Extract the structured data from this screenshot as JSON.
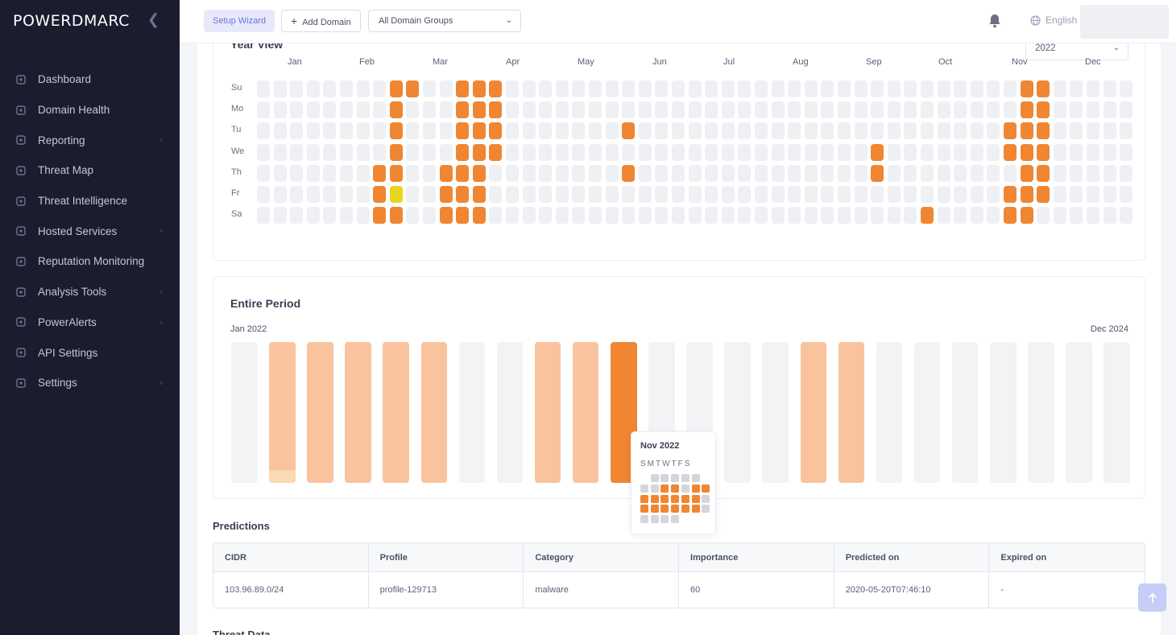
{
  "brand": {
    "name": "POWERDMARC"
  },
  "sidebar": {
    "collapse_icon": "chevron-left-icon",
    "items": [
      {
        "label": "Dashboard",
        "icon": "dashboard-icon",
        "has_submenu": false
      },
      {
        "label": "Domain Health",
        "icon": "domain-health-icon",
        "has_submenu": false
      },
      {
        "label": "Reporting",
        "icon": "reporting-icon",
        "has_submenu": true
      },
      {
        "label": "Threat Map",
        "icon": "threat-map-icon",
        "has_submenu": false
      },
      {
        "label": "Threat Intelligence",
        "icon": "threat-intelligence-icon",
        "has_submenu": false
      },
      {
        "label": "Hosted Services",
        "icon": "hosted-services-icon",
        "has_submenu": true
      },
      {
        "label": "Reputation Monitoring",
        "icon": "reputation-icon",
        "has_submenu": false
      },
      {
        "label": "Analysis Tools",
        "icon": "analysis-icon",
        "has_submenu": true
      },
      {
        "label": "PowerAlerts",
        "icon": "poweralerts-icon",
        "has_submenu": true
      },
      {
        "label": "API Settings",
        "icon": "api-icon",
        "has_submenu": false
      },
      {
        "label": "Settings",
        "icon": "settings-icon",
        "has_submenu": true
      }
    ]
  },
  "header": {
    "wizard_label": "Setup Wizard",
    "add_domain_label": "Add Domain",
    "domain_groups_value": "All Domain Groups",
    "language": "English"
  },
  "year_view": {
    "title": "Year View",
    "year_value": "2022",
    "months": [
      "Jan",
      "Feb",
      "Mar",
      "Apr",
      "May",
      "Jun",
      "Jul",
      "Aug",
      "Sep",
      "Oct",
      "Nov",
      "Dec"
    ],
    "days": [
      "Su",
      "Mo",
      "Tu",
      "We",
      "Th",
      "Fr",
      "Sa"
    ],
    "week_count": 53,
    "colors": {
      "empty": "#eef0f3",
      "active": "#f08632",
      "warn": "#e8d51d"
    },
    "active_cells": [
      [
        8,
        0
      ],
      [
        9,
        0
      ],
      [
        12,
        0
      ],
      [
        13,
        0
      ],
      [
        14,
        0
      ],
      [
        46,
        0
      ],
      [
        47,
        0
      ],
      [
        8,
        1
      ],
      [
        12,
        1
      ],
      [
        13,
        1
      ],
      [
        14,
        1
      ],
      [
        46,
        1
      ],
      [
        47,
        1
      ],
      [
        8,
        2
      ],
      [
        12,
        2
      ],
      [
        13,
        2
      ],
      [
        14,
        2
      ],
      [
        22,
        2
      ],
      [
        45,
        2
      ],
      [
        46,
        2
      ],
      [
        47,
        2
      ],
      [
        8,
        3
      ],
      [
        12,
        3
      ],
      [
        13,
        3
      ],
      [
        14,
        3
      ],
      [
        37,
        3
      ],
      [
        45,
        3
      ],
      [
        46,
        3
      ],
      [
        47,
        3
      ],
      [
        7,
        4
      ],
      [
        8,
        4
      ],
      [
        11,
        4
      ],
      [
        12,
        4
      ],
      [
        13,
        4
      ],
      [
        22,
        4
      ],
      [
        37,
        4
      ],
      [
        46,
        4
      ],
      [
        47,
        4
      ],
      [
        7,
        5
      ],
      [
        11,
        5
      ],
      [
        12,
        5
      ],
      [
        13,
        5
      ],
      [
        45,
        5
      ],
      [
        46,
        5
      ],
      [
        47,
        5
      ],
      [
        7,
        6
      ],
      [
        8,
        6
      ],
      [
        11,
        6
      ],
      [
        12,
        6
      ],
      [
        13,
        6
      ],
      [
        40,
        6
      ],
      [
        45,
        6
      ],
      [
        46,
        6
      ]
    ],
    "warn_cells": [
      [
        8,
        5
      ]
    ]
  },
  "entire_period": {
    "title": "Entire Period",
    "start_label": "Jan 2022",
    "end_label": "Dec 2024",
    "colors": {
      "empty": "#f2f3f5",
      "light": "#f9c49d",
      "dark": "#f08632",
      "subfill": "#fbd9b3"
    },
    "bars": [
      "empty",
      "light",
      "light",
      "light",
      "light",
      "light",
      "empty",
      "empty",
      "light",
      "light",
      "dark",
      "empty",
      "empty",
      "empty",
      "empty",
      "light",
      "light",
      "empty",
      "empty",
      "empty",
      "empty",
      "empty",
      "empty",
      "empty"
    ],
    "first_light_subfill": true
  },
  "tooltip": {
    "title": "Nov 2022",
    "weekdays": "SMTWTFS",
    "cells": [
      [
        "e",
        "g",
        "g",
        "g",
        "g",
        "g",
        "e"
      ],
      [
        "g",
        "g",
        "o",
        "o",
        "g",
        "o",
        "o"
      ],
      [
        "o",
        "o",
        "o",
        "o",
        "o",
        "o",
        "g"
      ],
      [
        "o",
        "o",
        "o",
        "o",
        "o",
        "o",
        "g"
      ],
      [
        "g",
        "g",
        "g",
        "g",
        "e",
        "e",
        "e"
      ]
    ],
    "colors": {
      "g": "#d4d6dc",
      "o": "#f08632"
    }
  },
  "predictions": {
    "title": "Predictions",
    "columns": [
      "CIDR",
      "Profile",
      "Category",
      "Importance",
      "Predicted on",
      "Expired on"
    ],
    "rows": [
      [
        "103.96.89.0/24",
        "profile-129713",
        "malware",
        "60",
        "2020-05-20T07:46:10",
        "-"
      ]
    ]
  },
  "threat_data": {
    "title": "Threat Data"
  }
}
